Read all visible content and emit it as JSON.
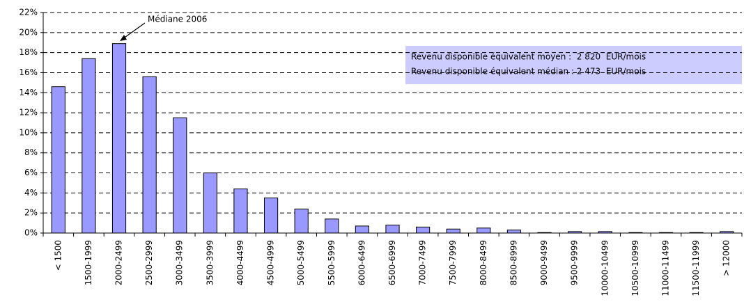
{
  "chart_data": {
    "type": "bar",
    "categories": [
      "< 1500",
      "1500-1999",
      "2000-2499",
      "2500-2999",
      "3000-3499",
      "3500-3999",
      "4000-4499",
      "4500-4999",
      "5000-5499",
      "5500-5999",
      "6000-6499",
      "6500-6999",
      "7000-7499",
      "7500-7999",
      "8000-8499",
      "8500-8999",
      "9000-9499",
      "9500-9999",
      "10000-10499",
      "10500-10999",
      "11000-11499",
      "11500-11999",
      "> 12000"
    ],
    "values": [
      14.6,
      17.4,
      18.9,
      15.6,
      11.5,
      6.0,
      4.4,
      3.5,
      2.4,
      1.4,
      0.7,
      0.8,
      0.6,
      0.4,
      0.5,
      0.3,
      0.05,
      0.15,
      0.15,
      0.05,
      0.05,
      0.05,
      0.15
    ],
    "color": "#9999ff",
    "ylim": [
      0,
      22
    ],
    "yticks": [
      {
        "value": 0,
        "label": "0%"
      },
      {
        "value": 2,
        "label": "2%"
      },
      {
        "value": 4,
        "label": "4%"
      },
      {
        "value": 6,
        "label": "6%"
      },
      {
        "value": 8,
        "label": "8%"
      },
      {
        "value": 10,
        "label": "10%"
      },
      {
        "value": 12,
        "label": "12%"
      },
      {
        "value": 14,
        "label": "14%"
      },
      {
        "value": 16,
        "label": "16%"
      },
      {
        "value": 18,
        "label": "18%"
      },
      {
        "value": 20,
        "label": "20%"
      },
      {
        "value": 22,
        "label": "22%"
      }
    ],
    "grid": true,
    "annotation": "Médiane 2006",
    "info_box": [
      "Revenu disponible équivalent moyen :  2 820  EUR/mois",
      "Revenu disponible équivalent médian : 2 473  EUR/mois"
    ]
  }
}
